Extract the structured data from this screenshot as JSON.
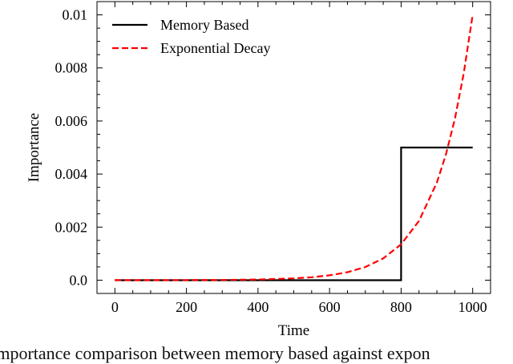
{
  "chart_data": {
    "type": "line",
    "xlabel": "Time",
    "ylabel": "Importance",
    "xlim": [
      -50,
      1050
    ],
    "ylim": [
      -0.0005,
      0.0105
    ],
    "xticks": [
      0,
      200,
      400,
      600,
      800,
      1000
    ],
    "xtick_labels": [
      "0",
      "200",
      "400",
      "600",
      "800",
      "1000"
    ],
    "yticks": [
      0,
      0.002,
      0.004,
      0.006,
      0.008,
      0.01
    ],
    "ytick_labels": [
      "0.0",
      "0.002",
      "0.004",
      "0.006",
      "0.008",
      "0.01"
    ],
    "grid": false,
    "legend_position": "top-left",
    "series": [
      {
        "name": "Memory Based",
        "color": "#000000",
        "style": "solid",
        "x": [
          0,
          800,
          800,
          1000
        ],
        "y": [
          0,
          0,
          0.005,
          0.005
        ]
      },
      {
        "name": "Exponential Decay",
        "color": "#ff0000",
        "style": "dashed",
        "x": [
          0,
          100,
          200,
          300,
          400,
          500,
          550,
          600,
          650,
          700,
          750,
          800,
          850,
          900,
          925,
          950,
          975,
          1000
        ],
        "y": [
          5e-07,
          1.2e-06,
          3.4e-06,
          9.1e-06,
          2.48e-05,
          6.74e-05,
          0.000111,
          0.000183,
          0.000302,
          0.000498,
          0.000821,
          0.001353,
          0.002231,
          0.003679,
          0.004724,
          0.006065,
          0.007788,
          0.01
        ]
      }
    ]
  },
  "caption": "Importance comparison between memory based against expon"
}
